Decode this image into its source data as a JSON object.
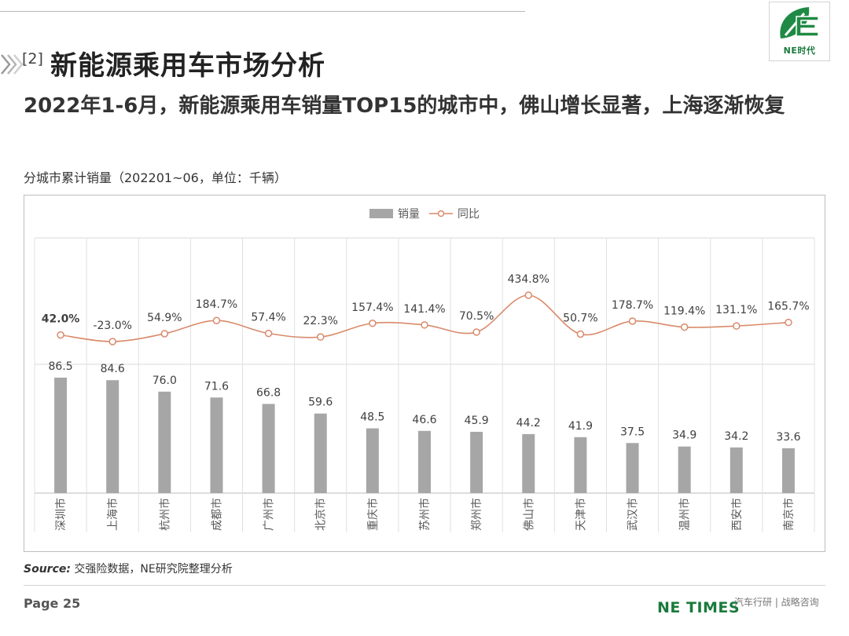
{
  "header": {
    "section_number": "[2]",
    "section_title": "新能源乘用车市场分析",
    "headline": "2022年1-6月，新能源乘用车销量TOP15的城市中，佛山增长显著，上海逐渐恢复",
    "logo_text": "NE时代"
  },
  "chart_caption": "分城市累计销量（202201~06，单位：千辆）",
  "chart_data": {
    "type": "bar",
    "title": "",
    "xlabel": "",
    "ylabel": "",
    "legend_position": "top-center",
    "categories": [
      "深圳市",
      "上海市",
      "杭州市",
      "成都市",
      "广州市",
      "北京市",
      "重庆市",
      "苏州市",
      "郑州市",
      "佛山市",
      "天津市",
      "武汉市",
      "温州市",
      "西安市",
      "南京市"
    ],
    "series": [
      {
        "name": "销量",
        "type": "bar",
        "color": "#a6a6a6",
        "values": [
          86.5,
          84.6,
          76.0,
          71.6,
          66.8,
          59.6,
          48.5,
          46.6,
          45.9,
          44.2,
          41.9,
          37.5,
          34.9,
          34.2,
          33.6
        ],
        "labels": [
          "86.5",
          "84.6",
          "76.0",
          "71.6",
          "66.8",
          "59.6",
          "48.5",
          "46.6",
          "45.9",
          "44.2",
          "41.9",
          "37.5",
          "34.9",
          "34.2",
          "33.6"
        ]
      },
      {
        "name": "同比",
        "type": "line",
        "color": "#d98a6a",
        "values": [
          42.0,
          -23.0,
          54.9,
          184.7,
          57.4,
          22.3,
          157.4,
          141.4,
          70.5,
          434.8,
          50.7,
          178.7,
          119.4,
          131.1,
          165.7
        ],
        "labels": [
          "42.0%",
          "-23.0%",
          "54.9%",
          "184.7%",
          "57.4%",
          "22.3%",
          "157.4%",
          "141.4%",
          "70.5%",
          "434.8%",
          "50.7%",
          "178.7%",
          "119.4%",
          "131.1%",
          "165.7%"
        ]
      }
    ],
    "grid": true
  },
  "footer": {
    "source_label": "Source:",
    "source_text": " 交强险数据，NE研究院整理分析",
    "page": "Page 25",
    "brand": "NE TIMES",
    "brand_tag": "汽车行研 | 战略咨询"
  }
}
